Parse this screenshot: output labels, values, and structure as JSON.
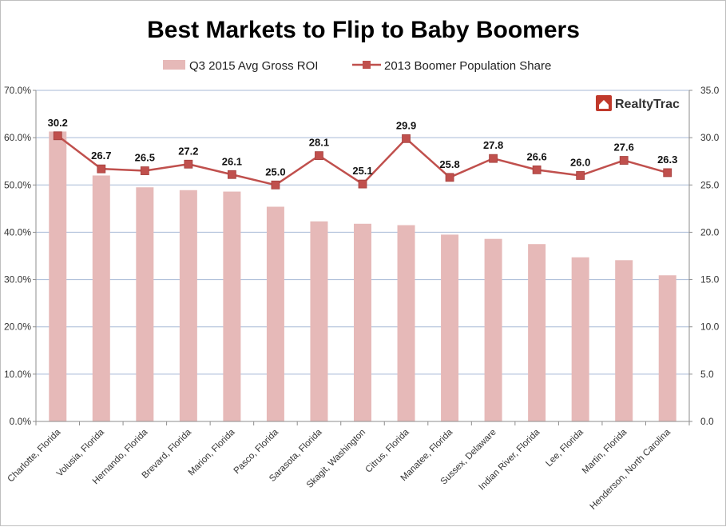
{
  "chart_data": {
    "type": "bar",
    "title": "Best Markets to Flip to Baby Boomers",
    "categories": [
      "Charlotte, Florida",
      "Volusia, Florida",
      "Hernando, Florida",
      "Brevard, Florida",
      "Marion, Florida",
      "Pasco, Florida",
      "Sarasota, Florida",
      "Skagit, Washington",
      "Citrus, Florida",
      "Manatee, Florida",
      "Sussex, Delaware",
      "Indian River, Florida",
      "Lee, Florida",
      "Martin, Florida",
      "Henderson, North Carolina"
    ],
    "series": [
      {
        "name": "Q3 2015 Avg Gross ROI",
        "type": "bar",
        "axis": "left",
        "color": "#e6b9b8",
        "values": [
          61.3,
          52.0,
          49.5,
          48.9,
          48.6,
          45.4,
          42.3,
          41.8,
          41.5,
          39.5,
          38.6,
          37.5,
          34.7,
          34.1,
          30.9
        ]
      },
      {
        "name": "2013 Boomer Population Share",
        "type": "line",
        "axis": "right",
        "color": "#c0504d",
        "marker": "square",
        "values": [
          30.2,
          26.7,
          26.5,
          27.2,
          26.1,
          25.0,
          28.1,
          25.1,
          29.9,
          25.8,
          27.8,
          26.6,
          26.0,
          27.6,
          26.3
        ],
        "labels": [
          "30.2",
          "26.7",
          "26.5",
          "27.2",
          "26.1",
          "25.0",
          "28.1",
          "25.1",
          "29.9",
          "25.8",
          "27.8",
          "26.6",
          "26.0",
          "27.6",
          "26.3"
        ]
      }
    ],
    "y_left": {
      "ylim": [
        0,
        70
      ],
      "ticks": [
        0,
        10,
        20,
        30,
        40,
        50,
        60,
        70
      ],
      "tick_labels": [
        "0.0%",
        "10.0%",
        "20.0%",
        "30.0%",
        "40.0%",
        "50.0%",
        "60.0%",
        "70.0%"
      ]
    },
    "y_right": {
      "ylim": [
        0,
        35
      ],
      "ticks": [
        0,
        5,
        10,
        15,
        20,
        25,
        30,
        35
      ],
      "tick_labels": [
        "0.0",
        "5.0",
        "10.0",
        "15.0",
        "20.0",
        "25.0",
        "30.0",
        "35.0"
      ]
    },
    "grid": true,
    "legend_position": "top-center"
  },
  "logo": {
    "text": "RealtyTrac",
    "icon": "house-icon",
    "color": "#c0392b"
  }
}
